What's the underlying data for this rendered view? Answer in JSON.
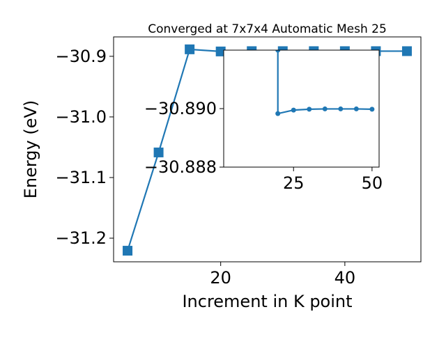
{
  "chart_data": [
    {
      "type": "line",
      "title": "Converged at 7x7x4 Automatic Mesh 25",
      "xlabel": "Increment in K point",
      "ylabel": "Energy (eV)",
      "x": [
        5,
        10,
        15,
        20,
        25,
        30,
        35,
        40,
        45,
        50
      ],
      "series": [
        {
          "color": "#1f77b4",
          "marker": "square",
          "values": [
            -31.2207,
            -31.0586,
            -30.8885,
            -30.892,
            -30.8915,
            -30.8915,
            -30.8915,
            -30.8915,
            -30.8915,
            -30.8915
          ]
        }
      ],
      "xlim": [
        2.75,
        52.25
      ],
      "xticks": [
        20,
        40
      ],
      "ylim": [
        -31.239,
        -30.868
      ],
      "yticks": [
        {
          "value": -30.9,
          "label": "−30.9"
        },
        {
          "value": -31.0,
          "label": "−31.0"
        },
        {
          "value": -31.1,
          "label": "−31.1"
        },
        {
          "value": -31.2,
          "label": "−31.2"
        }
      ]
    },
    {
      "type": "line",
      "x": [
        20,
        20,
        25,
        30,
        35,
        40,
        45,
        50
      ],
      "series": [
        {
          "color": "#1f77b4",
          "marker": "circle",
          "values": [
            -30.892,
            -30.88983,
            -30.88995,
            -30.88998,
            -30.88999,
            -30.88999,
            -30.88999,
            -30.88998
          ]
        }
      ],
      "xlim": [
        2.75,
        52.25
      ],
      "xticks": [
        25,
        50
      ],
      "ylim": [
        -30.888,
        -30.892
      ],
      "yticks": [
        {
          "value": -30.89,
          "label": "−30.890"
        },
        {
          "value": -30.888,
          "label": "−30.888"
        }
      ]
    }
  ]
}
